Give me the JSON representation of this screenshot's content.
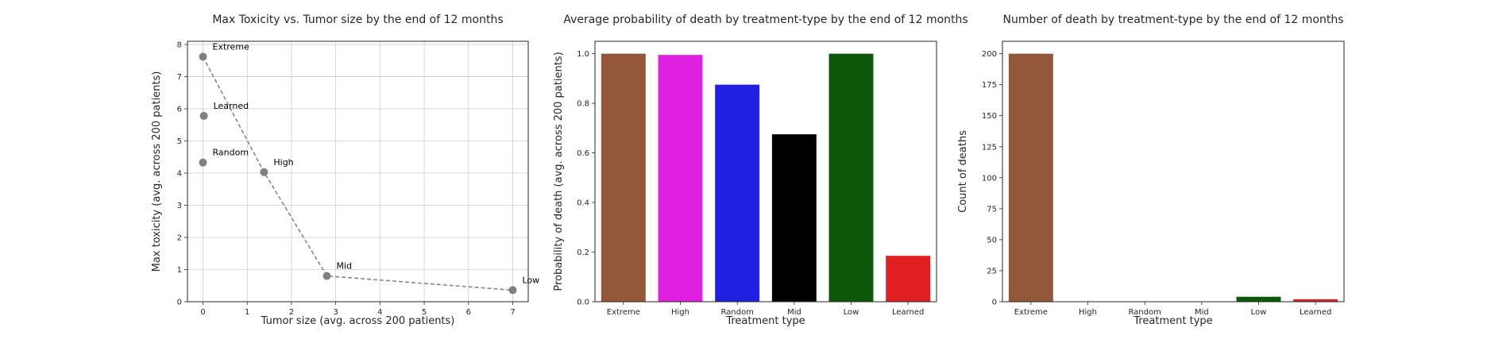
{
  "chart_data": [
    {
      "type": "scatter",
      "title": "Max Toxicity vs. Tumor size by the end of 12 months",
      "xlabel": "Tumor size (avg. across 200 patients)",
      "ylabel": "Max toxicity (avg. across 200 patients)",
      "xlim": [
        -0.35,
        7.35
      ],
      "ylim": [
        0,
        8.1
      ],
      "xticks": [
        0,
        1,
        2,
        3,
        4,
        5,
        6,
        7
      ],
      "yticks": [
        0,
        1,
        2,
        3,
        4,
        5,
        6,
        7,
        8
      ],
      "grid": true,
      "marker_color": "#808080",
      "line_style": "dashed",
      "points": [
        {
          "label": "Extreme",
          "x": 0.0,
          "y": 7.62
        },
        {
          "label": "Learned",
          "x": 0.02,
          "y": 5.78
        },
        {
          "label": "Random",
          "x": 0.0,
          "y": 4.33
        },
        {
          "label": "High",
          "x": 1.38,
          "y": 4.03
        },
        {
          "label": "Mid",
          "x": 2.8,
          "y": 0.8
        },
        {
          "label": "Low",
          "x": 7.0,
          "y": 0.36
        }
      ],
      "line_order": [
        "Extreme",
        "High",
        "Mid",
        "Low"
      ]
    },
    {
      "type": "bar",
      "title": "Average probability of death by treatment-type by the end of 12 months",
      "xlabel": "Treatment type",
      "ylabel": "Probability of death (avg. across 200 patients)",
      "ylim": [
        0,
        1.05
      ],
      "yticks": [
        0.0,
        0.2,
        0.4,
        0.6,
        0.8,
        1.0
      ],
      "ytick_labels": [
        "0.0",
        "0.2",
        "0.4",
        "0.6",
        "0.8",
        "1.0"
      ],
      "grid": false,
      "categories": [
        "Extreme",
        "High",
        "Random",
        "Mid",
        "Low",
        "Learned"
      ],
      "values": [
        1.0,
        0.995,
        0.875,
        0.675,
        1.0,
        0.185
      ],
      "colors": [
        "#93573a",
        "#e020e0",
        "#2020e0",
        "#000000",
        "#0b580b",
        "#e02020"
      ]
    },
    {
      "type": "bar",
      "title": "Number of death by treatment-type by the end of 12 months",
      "xlabel": "Treatment type",
      "ylabel": "Count of deaths",
      "ylim": [
        0,
        210
      ],
      "yticks": [
        0,
        25,
        50,
        75,
        100,
        125,
        150,
        175,
        200
      ],
      "ytick_labels": [
        "0",
        "25",
        "50",
        "75",
        "100",
        "125",
        "150",
        "175",
        "200"
      ],
      "grid": false,
      "categories": [
        "Extreme",
        "High",
        "Random",
        "Mid",
        "Low",
        "Learned"
      ],
      "values": [
        200,
        0,
        0,
        0,
        4,
        2
      ],
      "colors": [
        "#93573a",
        "#e020e0",
        "#2020e0",
        "#000000",
        "#0b580b",
        "#e02020"
      ]
    }
  ]
}
